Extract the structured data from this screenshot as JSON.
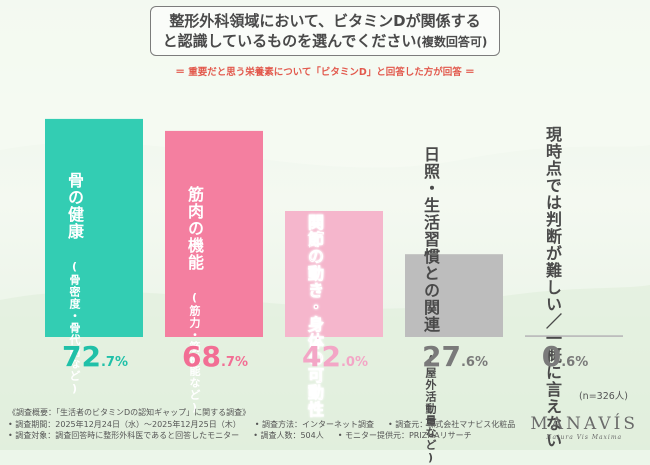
{
  "title": {
    "line1": "整形外科領域において、ビタミンDが関係する",
    "line2": "と認識しているものを選んでください",
    "line2_tail": "(複数回答可)"
  },
  "subtitle": "＝ 重要だと思う栄養素について「ビタミンD」と回答した方が回答 ＝",
  "chart_data": {
    "type": "bar",
    "categories": [
      {
        "main": "骨の健康",
        "sub": "(骨密度・骨代謝など)"
      },
      {
        "main": "筋肉の機能",
        "sub": "(筋力・筋機能など)"
      },
      {
        "main": "関節の動き・身体の可動性",
        "sub": ""
      },
      {
        "main": "日照・生活習慣との関連",
        "sub": "(屋外活動量など)"
      },
      {
        "main": "現時点では判断が難しい／一概に言えない",
        "sub": ""
      }
    ],
    "values": [
      72.7,
      68.7,
      42.0,
      27.6,
      0.6
    ],
    "value_labels": [
      {
        "int": "72",
        "dec": ".7%"
      },
      {
        "int": "68",
        "dec": ".7%"
      },
      {
        "int": "42",
        "dec": ".0%"
      },
      {
        "int": "27",
        "dec": ".6%"
      },
      {
        "int": "0",
        "dec": ".6%"
      }
    ],
    "colors": [
      "#33cdb3",
      "#f47fa0",
      "#f5b6cc",
      "#bdbdbd",
      "#bdbdbd"
    ],
    "value_colors": [
      "#20c0a8",
      "#f26e94",
      "#f3a6c6",
      "#7a7a7a",
      "#7a7a7a"
    ],
    "ylim": [
      0,
      100
    ]
  },
  "n_label": "(n=326人)",
  "notes": {
    "line1": "《調査概要：「生活者のビタミンDの認知ギャップ」に関する調査》",
    "line2a": "• 調査期間：2025年12月24日（水）〜2025年12月25日（木）",
    "line2b": "• 調査方法：インターネット調査",
    "line2c": "• 調査元：株式会社マナビス化粧品",
    "line3a": "• 調査対象：調査回答時に整形外科医であると回答したモニター",
    "line3b": "• 調査人数：504人",
    "line3c": "• モニター提供元：PRIZMAリサーチ"
  },
  "brand": {
    "logo": "MANAVÍS",
    "tagline": "Natura Vis Maxima"
  }
}
